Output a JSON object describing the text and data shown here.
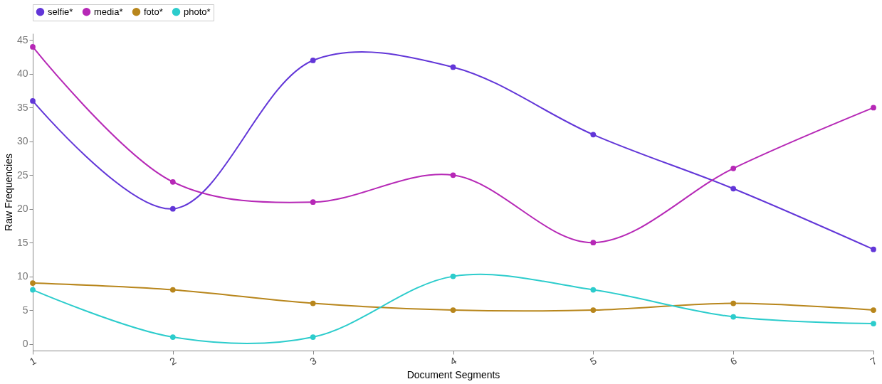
{
  "chart_data": {
    "type": "line",
    "xlabel": "Document Segments",
    "ylabel": "Raw Frequencies",
    "x": [
      1,
      2,
      3,
      4,
      5,
      6,
      7
    ],
    "xlim": [
      1,
      7
    ],
    "xticks": [
      1,
      2,
      3,
      4,
      5,
      6,
      7
    ],
    "ylim": [
      -1,
      46
    ],
    "yticks": [
      0,
      5,
      10,
      15,
      20,
      25,
      30,
      35,
      40,
      45
    ],
    "series": [
      {
        "name": "selfie*",
        "color": "#6236d8",
        "values": [
          36,
          20,
          42,
          41,
          31,
          23,
          14
        ]
      },
      {
        "name": "media*",
        "color": "#b628b6",
        "values": [
          44,
          24,
          21,
          25,
          15,
          26,
          35
        ]
      },
      {
        "name": "foto*",
        "color": "#b8861c",
        "values": [
          9,
          8,
          6,
          5,
          5,
          6,
          5
        ]
      },
      {
        "name": "photo*",
        "color": "#2ccccc",
        "values": [
          8,
          1,
          1,
          10,
          8,
          4,
          3
        ]
      }
    ],
    "legend": "top",
    "grid": false,
    "marker": "circle",
    "line_style": "solid"
  }
}
